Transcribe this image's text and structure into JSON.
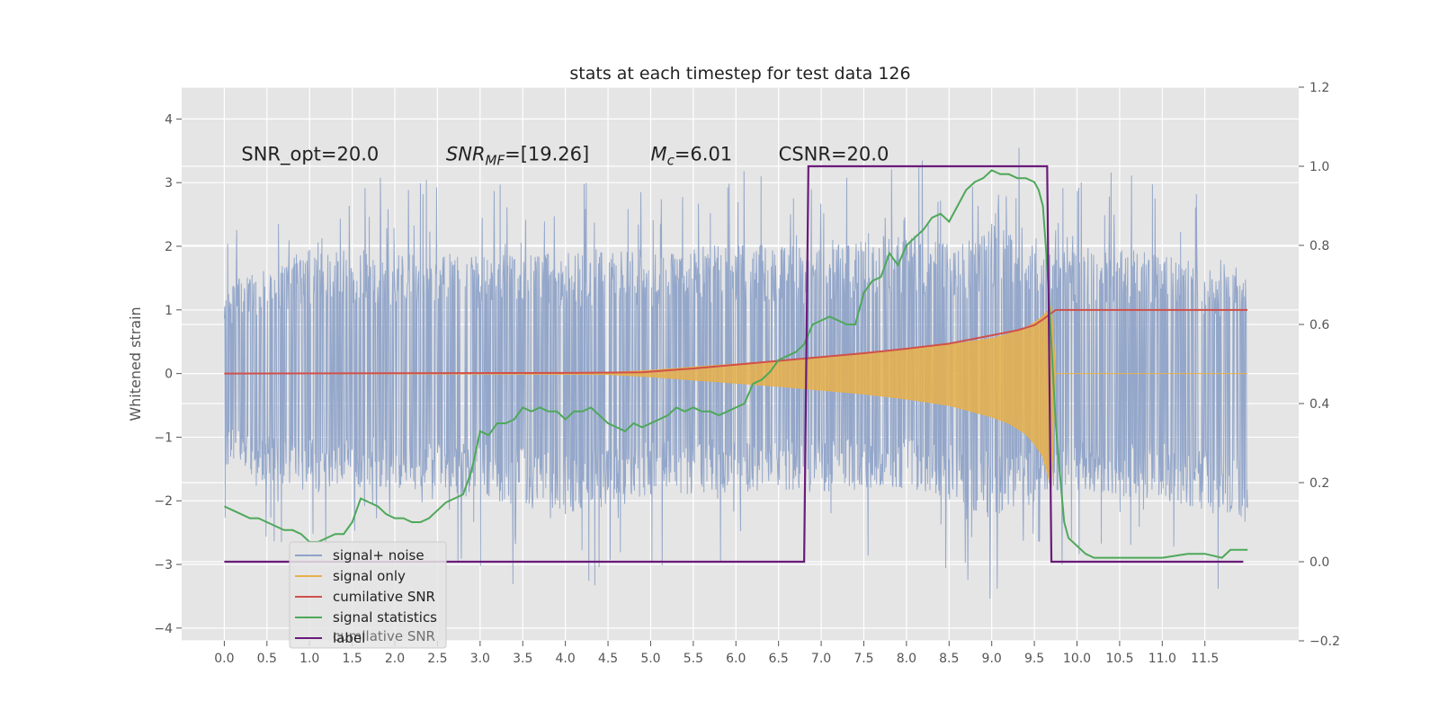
{
  "chart_data": {
    "type": "line",
    "title": "stats at each timestep for test data 126",
    "ylabel": "Whitened strain",
    "xlim": [
      -0.5,
      12.6
    ],
    "ylim": [
      -4.2,
      4.5
    ],
    "y2lim": [
      -0.2,
      1.2
    ],
    "grid": true,
    "legend_position": "bottom-left",
    "x_ticks": [
      0.0,
      0.5,
      1.0,
      1.5,
      2.0,
      2.5,
      3.0,
      3.5,
      4.0,
      4.5,
      5.0,
      5.5,
      6.0,
      6.5,
      7.0,
      7.5,
      8.0,
      8.5,
      9.0,
      9.5,
      10.0,
      10.5,
      11.0,
      11.5
    ],
    "x_tick_labels": [
      "0.0",
      "0.5",
      "1.0",
      "1.5",
      "2.0",
      "2.5",
      "3.0",
      "3.5",
      "4.0",
      "4.5",
      "5.0",
      "5.5",
      "6.0",
      "6.5",
      "7.0",
      "7.5",
      "8.0",
      "8.5",
      "9.0",
      "9.5",
      "10.0",
      "10.5",
      "11.0",
      "11.5"
    ],
    "y_ticks": [
      -4,
      -3,
      -2,
      -1,
      0,
      1,
      2,
      3,
      4
    ],
    "y_tick_labels": [
      "−4",
      "−3",
      "−2",
      "−1",
      "0",
      "1",
      "2",
      "3",
      "4"
    ],
    "y2_ticks": [
      -0.2,
      0.0,
      0.2,
      0.4,
      0.6,
      0.8,
      1.0,
      1.2
    ],
    "y2_tick_labels": [
      "−0.2",
      "0.0",
      "0.2",
      "0.4",
      "0.6",
      "0.8",
      "1.0",
      "1.2"
    ],
    "annotations": [
      {
        "text": "SNR_opt=20.0",
        "x": 0.2,
        "y": 3.35
      },
      {
        "text": "SNR_MF=[19.26]",
        "x": 2.6,
        "y": 3.35
      },
      {
        "text": "M_c=6.01",
        "x": 5.0,
        "y": 3.35
      },
      {
        "text": "CSNR=20.0",
        "x": 6.5,
        "y": 3.35
      }
    ],
    "series": [
      {
        "name": "signal+ noise",
        "axis": "left",
        "color": "#8fa3c8",
        "x_range": [
          0.0,
          12.0
        ],
        "amplitude_envelope": {
          "x": [
            0.0,
            1.0,
            2.0,
            3.0,
            4.0,
            5.0,
            6.0,
            7.0,
            8.0,
            8.5,
            9.0,
            9.5,
            9.7,
            10.0,
            11.0,
            12.0
          ],
          "upper": [
            2.2,
            3.2,
            3.1,
            3.0,
            3.1,
            3.1,
            3.3,
            3.2,
            3.6,
            3.3,
            3.7,
            3.7,
            3.1,
            3.2,
            3.1,
            2.4
          ],
          "lower": [
            -2.4,
            -3.0,
            -2.9,
            -3.2,
            -3.6,
            -3.1,
            -3.0,
            -3.0,
            -2.9,
            -3.3,
            -3.6,
            -3.3,
            -3.0,
            -3.0,
            -3.2,
            -3.8
          ]
        }
      },
      {
        "name": "signal only",
        "axis": "left",
        "color": "#e8b04a",
        "envelope": {
          "x": [
            0.0,
            2.0,
            4.0,
            4.5,
            5.0,
            5.5,
            6.0,
            6.5,
            7.0,
            7.5,
            8.0,
            8.5,
            9.0,
            9.2,
            9.4,
            9.5,
            9.6,
            9.7,
            9.75,
            12.0
          ],
          "upper": [
            0.0,
            0.005,
            0.01,
            0.015,
            0.05,
            0.1,
            0.15,
            0.2,
            0.26,
            0.32,
            0.38,
            0.45,
            0.55,
            0.62,
            0.72,
            0.8,
            0.9,
            1.05,
            0.0,
            0.0
          ],
          "lower": [
            0.0,
            -0.005,
            -0.01,
            -0.015,
            -0.05,
            -0.1,
            -0.15,
            -0.2,
            -0.26,
            -0.32,
            -0.4,
            -0.5,
            -0.68,
            -0.78,
            -0.95,
            -1.1,
            -1.3,
            -1.8,
            0.0,
            0.0
          ]
        }
      },
      {
        "name": "cumilative SNR",
        "axis": "left",
        "color": "#d0504a",
        "x": [
          0.0,
          2.0,
          4.0,
          4.9,
          5.5,
          6.0,
          6.5,
          7.0,
          7.5,
          8.0,
          8.5,
          9.0,
          9.3,
          9.5,
          9.6,
          9.7,
          9.75,
          12.0
        ],
        "y": [
          0.0,
          0.005,
          0.01,
          0.02,
          0.08,
          0.14,
          0.2,
          0.26,
          0.32,
          0.39,
          0.47,
          0.6,
          0.68,
          0.76,
          0.85,
          0.95,
          1.0,
          1.0
        ]
      },
      {
        "name": "signal statistics",
        "axis": "right",
        "color": "#4ea85a",
        "x": [
          0.0,
          0.1,
          0.2,
          0.3,
          0.4,
          0.5,
          0.6,
          0.7,
          0.8,
          0.9,
          1.0,
          1.1,
          1.2,
          1.3,
          1.4,
          1.5,
          1.6,
          1.7,
          1.8,
          1.9,
          2.0,
          2.1,
          2.2,
          2.3,
          2.4,
          2.5,
          2.6,
          2.7,
          2.8,
          2.9,
          3.0,
          3.1,
          3.2,
          3.3,
          3.4,
          3.5,
          3.6,
          3.7,
          3.8,
          3.9,
          4.0,
          4.1,
          4.2,
          4.3,
          4.4,
          4.5,
          4.6,
          4.7,
          4.8,
          4.9,
          5.0,
          5.1,
          5.2,
          5.3,
          5.4,
          5.5,
          5.6,
          5.7,
          5.8,
          5.9,
          6.0,
          6.1,
          6.2,
          6.3,
          6.4,
          6.5,
          6.6,
          6.7,
          6.8,
          6.9,
          7.0,
          7.1,
          7.2,
          7.3,
          7.4,
          7.5,
          7.6,
          7.7,
          7.8,
          7.9,
          8.0,
          8.1,
          8.2,
          8.3,
          8.4,
          8.5,
          8.6,
          8.7,
          8.8,
          8.9,
          9.0,
          9.1,
          9.2,
          9.3,
          9.4,
          9.5,
          9.55,
          9.6,
          9.65,
          9.7,
          9.75,
          9.8,
          9.85,
          9.9,
          10.0,
          10.1,
          10.2,
          10.3,
          10.5,
          11.0,
          11.3,
          11.5,
          11.7,
          11.8,
          12.0
        ],
        "y": [
          0.14,
          0.13,
          0.12,
          0.11,
          0.11,
          0.1,
          0.09,
          0.08,
          0.08,
          0.07,
          0.05,
          0.05,
          0.06,
          0.07,
          0.07,
          0.1,
          0.16,
          0.15,
          0.14,
          0.12,
          0.11,
          0.11,
          0.1,
          0.1,
          0.11,
          0.13,
          0.15,
          0.16,
          0.17,
          0.23,
          0.33,
          0.32,
          0.35,
          0.35,
          0.36,
          0.39,
          0.38,
          0.39,
          0.38,
          0.38,
          0.36,
          0.38,
          0.38,
          0.39,
          0.37,
          0.35,
          0.34,
          0.33,
          0.35,
          0.34,
          0.35,
          0.36,
          0.37,
          0.39,
          0.38,
          0.39,
          0.38,
          0.38,
          0.37,
          0.38,
          0.39,
          0.4,
          0.45,
          0.46,
          0.48,
          0.51,
          0.52,
          0.53,
          0.55,
          0.6,
          0.61,
          0.62,
          0.61,
          0.6,
          0.6,
          0.68,
          0.71,
          0.72,
          0.78,
          0.75,
          0.8,
          0.82,
          0.84,
          0.87,
          0.88,
          0.86,
          0.9,
          0.94,
          0.96,
          0.97,
          0.99,
          0.98,
          0.98,
          0.97,
          0.97,
          0.96,
          0.94,
          0.9,
          0.75,
          0.55,
          0.35,
          0.22,
          0.1,
          0.06,
          0.04,
          0.02,
          0.01,
          0.01,
          0.01,
          0.01,
          0.02,
          0.02,
          0.01,
          0.03,
          0.03
        ]
      },
      {
        "name": "label",
        "axis": "right",
        "color": "#6a1b7a",
        "x": [
          0.0,
          6.8,
          6.85,
          9.65,
          9.7,
          11.95
        ],
        "y": [
          0.0,
          0.0,
          1.0,
          1.0,
          0.0,
          0.0
        ]
      }
    ],
    "legend_entries": [
      {
        "name": "signal+ noise",
        "color": "#8fa3c8"
      },
      {
        "name": "signal only",
        "color": "#e8b04a"
      },
      {
        "name": "cumilative SNR",
        "color": "#d0504a"
      },
      {
        "name": "signal statistics",
        "color": "#4ea85a"
      },
      {
        "name": "label",
        "color": "#6a1b7a"
      }
    ],
    "legend_hidden_text": "cumilative SNR"
  }
}
